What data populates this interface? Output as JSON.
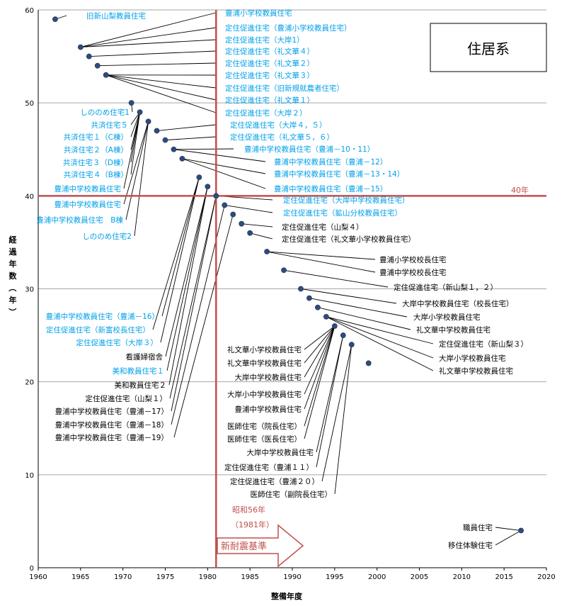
{
  "chart_data": {
    "type": "scatter",
    "title": "住居系",
    "xlabel": "整備年度",
    "ylabel": "経過年数（年）",
    "xlim": [
      1960,
      2020
    ],
    "ylim": [
      0,
      60
    ],
    "x_ticks": [
      1960,
      1965,
      1970,
      1975,
      1980,
      1985,
      1990,
      1995,
      2000,
      2005,
      2010,
      2015,
      2020
    ],
    "y_ticks": [
      0,
      10,
      20,
      30,
      40,
      50,
      60
    ],
    "grid": true,
    "reference_line_y": {
      "value": 40,
      "label": "40年"
    },
    "reference_line_x": {
      "value": 1981,
      "label_1": "昭和56年",
      "label_2": "（1981年）"
    },
    "arrow_label": "新耐震基準",
    "colors": {
      "point": "#2f4b7c",
      "cyan_label": "#00a0e9",
      "black_label": "#000000",
      "reference": "#c0504d",
      "grid": "#a6a6a6"
    },
    "points": [
      {
        "x": 1962,
        "y": 59
      },
      {
        "x": 1965,
        "y": 56
      },
      {
        "x": 1966,
        "y": 55
      },
      {
        "x": 1967,
        "y": 54
      },
      {
        "x": 1968,
        "y": 53
      },
      {
        "x": 1971,
        "y": 50
      },
      {
        "x": 1972,
        "y": 49
      },
      {
        "x": 1973,
        "y": 48
      },
      {
        "x": 1974,
        "y": 47
      },
      {
        "x": 1975,
        "y": 46
      },
      {
        "x": 1976,
        "y": 45
      },
      {
        "x": 1977,
        "y": 44
      },
      {
        "x": 1979,
        "y": 42
      },
      {
        "x": 1980,
        "y": 41
      },
      {
        "x": 1981,
        "y": 40
      },
      {
        "x": 1982,
        "y": 39
      },
      {
        "x": 1983,
        "y": 38
      },
      {
        "x": 1984,
        "y": 37
      },
      {
        "x": 1985,
        "y": 36
      },
      {
        "x": 1987,
        "y": 34
      },
      {
        "x": 1989,
        "y": 32
      },
      {
        "x": 1991,
        "y": 30
      },
      {
        "x": 1992,
        "y": 29
      },
      {
        "x": 1993,
        "y": 28
      },
      {
        "x": 1994,
        "y": 27
      },
      {
        "x": 1995,
        "y": 26
      },
      {
        "x": 1996,
        "y": 25
      },
      {
        "x": 1997,
        "y": 24
      },
      {
        "x": 1999,
        "y": 22
      },
      {
        "x": 2017,
        "y": 4
      }
    ],
    "labels": [
      {
        "text": "旧新山梨教員住宅",
        "color": "cyan",
        "point": 0
      },
      {
        "text": "豊浦小学校教員住宅",
        "color": "cyan",
        "point": 1
      },
      {
        "text": "定住促進住宅（豊浦小学校教員住宅）",
        "color": "cyan",
        "point": 1
      },
      {
        "text": "定住促進住宅（大岸1）",
        "color": "cyan",
        "point": 1
      },
      {
        "text": "定住促進住宅（礼文華４）",
        "color": "cyan",
        "point": 2
      },
      {
        "text": "定住促進住宅（礼文華２）",
        "color": "cyan",
        "point": 3
      },
      {
        "text": "定住促進住宅（礼文華３）",
        "color": "cyan",
        "point": 4
      },
      {
        "text": "定住促進住宅（旧新規就農者住宅）",
        "color": "cyan",
        "point": 4
      },
      {
        "text": "定住促進住宅（礼文華１）",
        "color": "cyan",
        "point": 4
      },
      {
        "text": "定住促進住宅（大岸２）",
        "color": "cyan",
        "point": 4
      },
      {
        "text": "定住促進住宅（大岸４，５）",
        "color": "cyan",
        "point": 8
      },
      {
        "text": "定住促進住宅（礼文華５，６）",
        "color": "cyan",
        "point": 9
      },
      {
        "text": "豊浦中学校教員住宅（豊浦－10・11）",
        "color": "cyan",
        "point": 10
      },
      {
        "text": "豊浦中学校教員住宅（豊浦－12）",
        "color": "cyan",
        "point": 10
      },
      {
        "text": "豊浦中学校教員住宅（豊浦－13・14）",
        "color": "cyan",
        "point": 11
      },
      {
        "text": "豊浦中学校教員住宅（豊浦－15）",
        "color": "cyan",
        "point": 11
      },
      {
        "text": "定住促進住宅（大岸中学校教員住宅）",
        "color": "cyan",
        "point": 14
      },
      {
        "text": "定住促進住宅（鉱山分校教員住宅）",
        "color": "cyan",
        "point": 15
      },
      {
        "text": "定住促進住宅（山梨４）",
        "color": "black",
        "point": 17
      },
      {
        "text": "定住促進住宅（礼文華小学校教員住宅）",
        "color": "black",
        "point": 18
      },
      {
        "text": "豊浦小学校校長住宅",
        "color": "black",
        "point": 19
      },
      {
        "text": "豊浦中学校校長住宅",
        "color": "black",
        "point": 19
      },
      {
        "text": "定住促進住宅（新山梨１，２）",
        "color": "black",
        "point": 20
      },
      {
        "text": "大岸中学校教員住宅（校長住宅）",
        "color": "black",
        "point": 21
      },
      {
        "text": "大岸小学校教員住宅",
        "color": "black",
        "point": 22
      },
      {
        "text": "礼文華中学校教員住宅",
        "color": "black",
        "point": 23
      },
      {
        "text": "定住促進住宅（新山梨３）",
        "color": "black",
        "point": 24
      },
      {
        "text": "大岸小学校教員住宅",
        "color": "black",
        "point": 24
      },
      {
        "text": "礼文華中学校教員住宅",
        "color": "black",
        "point": 24
      },
      {
        "text": "しののめ住宅1",
        "color": "cyan",
        "point": 5
      },
      {
        "text": "共済住宅５",
        "color": "cyan",
        "point": 6
      },
      {
        "text": "共済住宅１（C棟）",
        "color": "cyan",
        "point": 6
      },
      {
        "text": "共済住宅２（A棟）",
        "color": "cyan",
        "point": 6
      },
      {
        "text": "共済住宅３（D棟）",
        "color": "cyan",
        "point": 6
      },
      {
        "text": "共済住宅４（B棟）",
        "color": "cyan",
        "point": 6
      },
      {
        "text": "豊浦中学校教員住宅",
        "color": "cyan",
        "point": 6
      },
      {
        "text": "豊浦中学校教員住宅",
        "color": "cyan",
        "point": 7
      },
      {
        "text": "豊浦中学校教員住宅　B棟",
        "color": "cyan",
        "point": 7
      },
      {
        "text": "しののめ住宅2",
        "color": "cyan",
        "point": 7
      },
      {
        "text": "豊浦中学校教員住宅（豊浦－16）",
        "color": "cyan",
        "point": 12
      },
      {
        "text": "定住促進住宅（新富校長住宅）",
        "color": "cyan",
        "point": 12
      },
      {
        "text": "定住促進住宅（大岸３）",
        "color": "cyan",
        "point": 12
      },
      {
        "text": "看護婦宿舎",
        "color": "black",
        "point": 13
      },
      {
        "text": "美和教員住宅１",
        "color": "cyan",
        "point": 13
      },
      {
        "text": "美和教員住宅２",
        "color": "black",
        "point": 13
      },
      {
        "text": "定住促進住宅（山梨１）",
        "color": "black",
        "point": 14
      },
      {
        "text": "豊浦中学校教員住宅（豊浦－17）",
        "color": "black",
        "point": 14
      },
      {
        "text": "豊浦中学校教員住宅（豊浦－18）",
        "color": "black",
        "point": 15
      },
      {
        "text": "豊浦中学校教員住宅（豊浦－19）",
        "color": "black",
        "point": 16
      },
      {
        "text": "礼文華小学校教員住宅",
        "color": "black",
        "point": 25
      },
      {
        "text": "礼文華中学校教員住宅",
        "color": "black",
        "point": 25
      },
      {
        "text": "大岸中学校教員住宅",
        "color": "black",
        "point": 25
      },
      {
        "text": "大岸小中学校教員住宅",
        "color": "black",
        "point": 25
      },
      {
        "text": "豊浦中学校教員住宅",
        "color": "black",
        "point": 25
      },
      {
        "text": "医師住宅（院長住宅）",
        "color": "black",
        "point": 25
      },
      {
        "text": "医師住宅（医長住宅）",
        "color": "black",
        "point": 25
      },
      {
        "text": "大岸中学校教員住宅",
        "color": "black",
        "point": 26
      },
      {
        "text": "定住促進住宅（豊浦１１）",
        "color": "black",
        "point": 26
      },
      {
        "text": "定住促進住宅（豊浦２０）",
        "color": "black",
        "point": 27
      },
      {
        "text": "医師住宅（副院長住宅）",
        "color": "black",
        "point": 27
      },
      {
        "text": "職員住宅",
        "color": "black",
        "point": 29
      },
      {
        "text": "移住体験住宅",
        "color": "black",
        "point": 29
      }
    ]
  }
}
